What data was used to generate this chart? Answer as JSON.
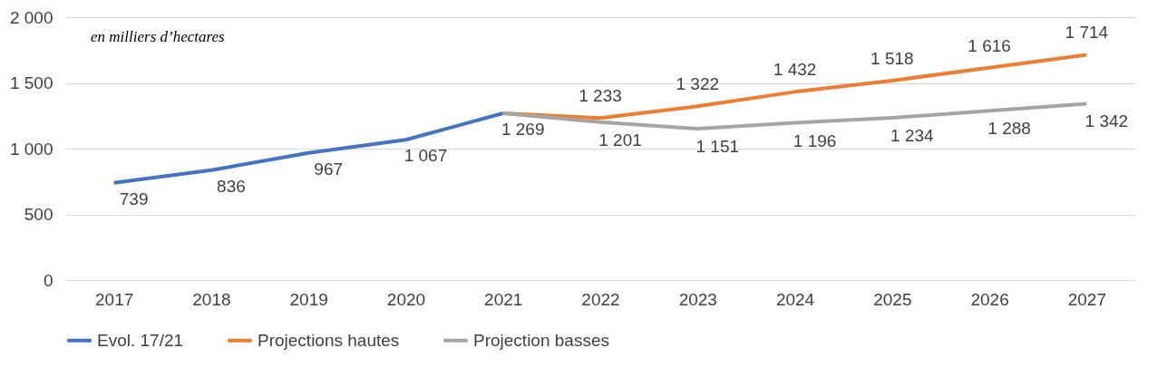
{
  "chart_data": {
    "type": "line",
    "categories": [
      "2017",
      "2018",
      "2019",
      "2020",
      "2021",
      "2022",
      "2023",
      "2024",
      "2025",
      "2026",
      "2027"
    ],
    "series": [
      {
        "name": "Evol. 17/21",
        "color": "#4472c4",
        "values": [
          739,
          836,
          967,
          1067,
          1269,
          null,
          null,
          null,
          null,
          null,
          null
        ],
        "value_labels": [
          "739",
          "836",
          "967",
          "1 067",
          "1 269",
          null,
          null,
          null,
          null,
          null,
          null
        ]
      },
      {
        "name": "Projections hautes",
        "color": "#ed7d31",
        "values": [
          null,
          null,
          null,
          null,
          1269,
          1233,
          1322,
          1432,
          1518,
          1616,
          1714
        ],
        "value_labels": [
          null,
          null,
          null,
          null,
          null,
          "1 233",
          "1 322",
          "1 432",
          "1 518",
          "1 616",
          "1 714"
        ]
      },
      {
        "name": "Projection  basses",
        "color": "#a5a5a5",
        "values": [
          null,
          null,
          null,
          null,
          1269,
          1201,
          1151,
          1196,
          1234,
          1288,
          1342
        ],
        "value_labels": [
          null,
          null,
          null,
          null,
          null,
          "1 201",
          "1 151",
          "1 196",
          "1 234",
          "1 288",
          "1 342"
        ]
      }
    ],
    "ylim": [
      0,
      2000
    ],
    "yticks": [
      0,
      500,
      {
        "value": 1000,
        "label": "1 000"
      },
      {
        "value": 1500,
        "label": "1 500"
      },
      {
        "value": 2000,
        "label": "2 000"
      }
    ],
    "annotations": [
      "en milliers d’hectares"
    ],
    "grid": "y",
    "legend": "bottom",
    "marker": "none",
    "line_style": "solid"
  }
}
